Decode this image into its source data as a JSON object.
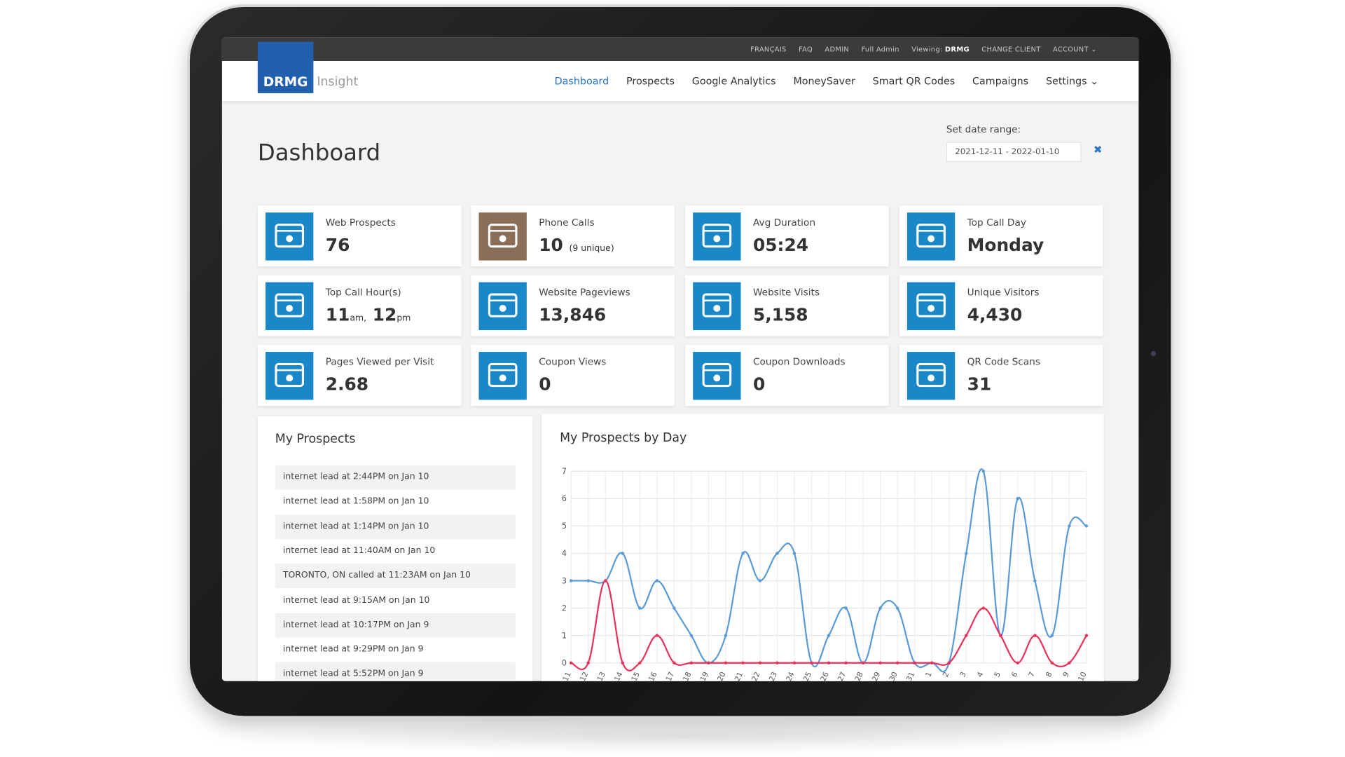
{
  "topbar": {
    "links": [
      "FRANÇAIS",
      "FAQ",
      "ADMIN",
      "Full Admin"
    ],
    "viewing_label": "Viewing:",
    "viewing_client": "DRMG",
    "change_client": "CHANGE CLIENT",
    "account": "ACCOUNT"
  },
  "logo": {
    "brand": "DRMG",
    "product": "Insight"
  },
  "nav": [
    "Dashboard",
    "Prospects",
    "Google Analytics",
    "MoneySaver",
    "Smart QR Codes",
    "Campaigns",
    "Settings"
  ],
  "page_title": "Dashboard",
  "date_range": {
    "label": "Set date range:",
    "value": "2021-12-11 - 2022-01-10"
  },
  "cards": [
    {
      "label": "Web Prospects",
      "value": 76
    },
    {
      "label": "Phone Calls",
      "value": 10,
      "note": "(9 unique)"
    },
    {
      "label": "Avg Duration",
      "value": "05:24"
    },
    {
      "label": "Top Call Day",
      "value": "Monday"
    },
    {
      "label": "Top Call Hour(s)",
      "value": 11,
      "unit": "am,",
      "value2": 12,
      "unit2": "pm"
    },
    {
      "label": "Website Pageviews",
      "value": "13,846"
    },
    {
      "label": "Website Visits",
      "value": "5,158"
    },
    {
      "label": "Unique Visitors",
      "value": "4,430"
    },
    {
      "label": "Pages Viewed per Visit",
      "value": 2.68
    },
    {
      "label": "Coupon Views",
      "value": 0
    },
    {
      "label": "Coupon Downloads",
      "value": 0
    },
    {
      "label": "QR Code Scans",
      "value": 31
    }
  ],
  "prospects": {
    "title": "My Prospects",
    "items": [
      "internet lead at 2:44PM on Jan 10",
      "internet lead at 1:58PM on Jan 10",
      "internet lead at 1:14PM on Jan 10",
      "internet lead at 11:40AM on Jan 10",
      "TORONTO, ON called at 11:23AM on Jan 10",
      "internet lead at 9:15AM on Jan 10",
      "internet lead at 10:17PM on Jan 9",
      "internet lead at 9:29PM on Jan 9",
      "internet lead at 5:52PM on Jan 9"
    ]
  },
  "chart": {
    "type": "line",
    "title": "My Prospects by Day",
    "categories": [
      "11",
      "12",
      "13",
      "14",
      "15",
      "16",
      "17",
      "18",
      "19",
      "20",
      "21",
      "22",
      "23",
      "24",
      "25",
      "26",
      "27",
      "28",
      "29",
      "30",
      "31",
      "1",
      "2",
      "3",
      "4",
      "5",
      "6",
      "7",
      "8",
      "9",
      "10"
    ],
    "series": [
      {
        "color": "#5b9bd5",
        "values": [
          3,
          3,
          3,
          4,
          2,
          3,
          2,
          1,
          0,
          1,
          4,
          3,
          4,
          4,
          0,
          1,
          2,
          0,
          2,
          2,
          0,
          0,
          0,
          4,
          7,
          1,
          6,
          3,
          1,
          5,
          5
        ]
      },
      {
        "color": "#e8325a",
        "values": [
          0,
          0,
          3,
          0,
          0,
          1,
          0,
          0,
          0,
          0,
          0,
          0,
          0,
          0,
          0,
          0,
          0,
          0,
          0,
          0,
          0,
          0,
          0,
          1,
          2,
          1,
          0,
          1,
          0,
          0,
          1
        ]
      }
    ],
    "ylim": [
      0,
      7
    ],
    "yticks": [
      0,
      1,
      2,
      3,
      4,
      5,
      6,
      7
    ],
    "grid": true
  }
}
